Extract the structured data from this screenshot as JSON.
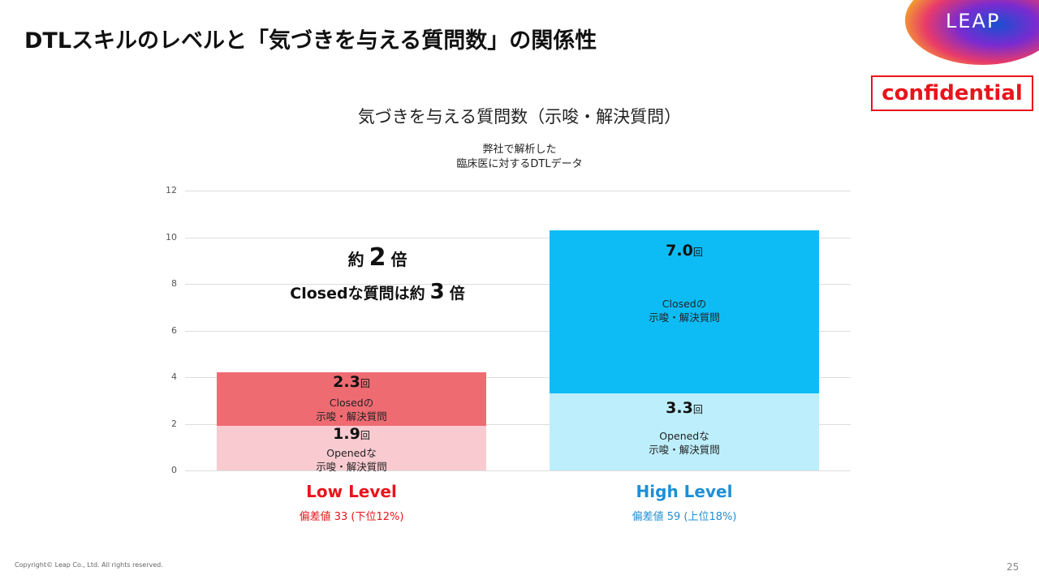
{
  "header": {
    "title": "DTLスキルのレベルと「気づきを与える質問数」の関係性",
    "logo": "LEAP",
    "badge": "confidential"
  },
  "chart_data": {
    "type": "stacked-bar",
    "title": "気づきを与える質問数（示唆・解決質問）",
    "subtitle": "弊社で解析した\n臨床医に対するDTLデータ",
    "categories": [
      "Low Level",
      "High Level"
    ],
    "category_notes": [
      "偏差値 33 (下位12%)",
      "偏差値 59 (上位18%)"
    ],
    "category_colors": [
      "#e8141c",
      "#1e8fd5"
    ],
    "unit": "回",
    "series": [
      {
        "name": "Openedな\n示唆・解決質問",
        "colors": [
          "#f9cbd0",
          "#bdeefb"
        ],
        "values": [
          1.9,
          3.3
        ],
        "value_labels": [
          "1.9",
          "3.3"
        ]
      },
      {
        "name": "Closedの\n示唆・解決質問",
        "colors": [
          "#ef6b72",
          "#0dbcf5"
        ],
        "values": [
          2.3,
          7.0
        ],
        "value_labels": [
          "2.3",
          "7.0"
        ]
      }
    ],
    "annotations": [
      [
        "約",
        "2",
        "倍"
      ],
      [
        "Closedな質問は約",
        "3",
        "倍"
      ]
    ],
    "ylim": [
      0,
      12
    ],
    "yticks": [
      0,
      2,
      4,
      6,
      8,
      10,
      12
    ],
    "grid": true
  },
  "footer": {
    "copyright": "Copyright© Leap Co., Ltd.  All rights reserved.",
    "page": "25"
  }
}
